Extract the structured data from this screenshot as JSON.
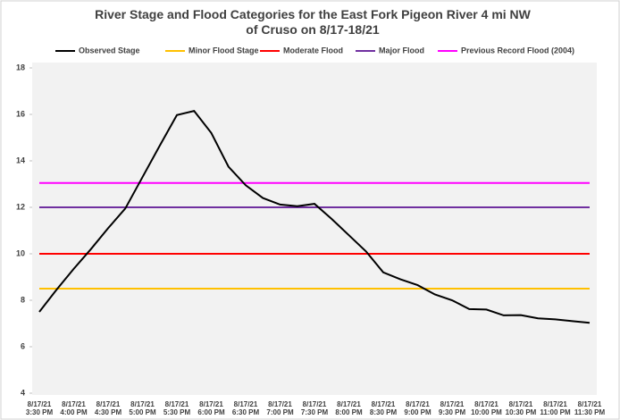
{
  "chart_data": {
    "type": "line",
    "title": "River Stage and Flood Categories for the East Fork Pigeon River 4 mi NW of Cruso on 8/17-18/21",
    "categories": [
      "8/17/21 3:30 PM",
      null,
      "8/17/21 4:00 PM",
      null,
      "8/17/21 4:30 PM",
      null,
      "8/17/21 5:00 PM",
      null,
      "8/17/21 5:30 PM",
      null,
      "8/17/21 6:00 PM",
      null,
      "8/17/21 6:30 PM",
      null,
      "8/17/21 7:00 PM",
      null,
      "8/17/21 7:30 PM",
      null,
      "8/17/21 8:00 PM",
      null,
      "8/17/21 8:30 PM",
      null,
      "8/17/21 9:00 PM",
      null,
      "8/17/21 9:30 PM",
      null,
      "8/17/21 10:00 PM",
      null,
      "8/17/21 10:30 PM",
      null,
      "8/17/21 11:00 PM",
      null,
      "8/17/21 11:30 PM"
    ],
    "series": [
      {
        "name": "Observed Stage",
        "color": "#000000",
        "values": [
          7.5,
          8.45,
          9.35,
          10.2,
          11.1,
          11.95,
          13.3,
          14.65,
          15.97,
          16.15,
          15.2,
          13.75,
          12.95,
          12.4,
          12.12,
          12.05,
          12.15,
          11.5,
          10.8,
          10.1,
          9.2,
          8.9,
          8.65,
          8.25,
          8.0,
          7.62,
          7.6,
          7.35,
          7.36,
          7.22,
          7.18,
          7.1,
          7.03
        ]
      },
      {
        "name": "Minor Flood Stage",
        "color": "#ffc000",
        "values": [
          8.5,
          8.5,
          8.5,
          8.5,
          8.5,
          8.5,
          8.5,
          8.5,
          8.5,
          8.5,
          8.5,
          8.5,
          8.5,
          8.5,
          8.5,
          8.5,
          8.5,
          8.5,
          8.5,
          8.5,
          8.5,
          8.5,
          8.5,
          8.5,
          8.5,
          8.5,
          8.5,
          8.5,
          8.5,
          8.5,
          8.5,
          8.5,
          8.5
        ]
      },
      {
        "name": "Moderate Flood",
        "color": "#ff0000",
        "values": [
          10,
          10,
          10,
          10,
          10,
          10,
          10,
          10,
          10,
          10,
          10,
          10,
          10,
          10,
          10,
          10,
          10,
          10,
          10,
          10,
          10,
          10,
          10,
          10,
          10,
          10,
          10,
          10,
          10,
          10,
          10,
          10,
          10
        ]
      },
      {
        "name": "Major Flood",
        "color": "#7030a0",
        "values": [
          12,
          12,
          12,
          12,
          12,
          12,
          12,
          12,
          12,
          12,
          12,
          12,
          12,
          12,
          12,
          12,
          12,
          12,
          12,
          12,
          12,
          12,
          12,
          12,
          12,
          12,
          12,
          12,
          12,
          12,
          12,
          12,
          12
        ]
      },
      {
        "name": "Previous Record Flood (2004)",
        "color": "#ff00ff",
        "values": [
          13.05,
          13.05,
          13.05,
          13.05,
          13.05,
          13.05,
          13.05,
          13.05,
          13.05,
          13.05,
          13.05,
          13.05,
          13.05,
          13.05,
          13.05,
          13.05,
          13.05,
          13.05,
          13.05,
          13.05,
          13.05,
          13.05,
          13.05,
          13.05,
          13.05,
          13.05,
          13.05,
          13.05,
          13.05,
          13.05,
          13.05,
          13.05,
          13.05
        ]
      }
    ],
    "ylim": [
      4,
      18
    ],
    "yticks": [
      4,
      6,
      8,
      10,
      12,
      14,
      16,
      18
    ],
    "legend": "top"
  }
}
